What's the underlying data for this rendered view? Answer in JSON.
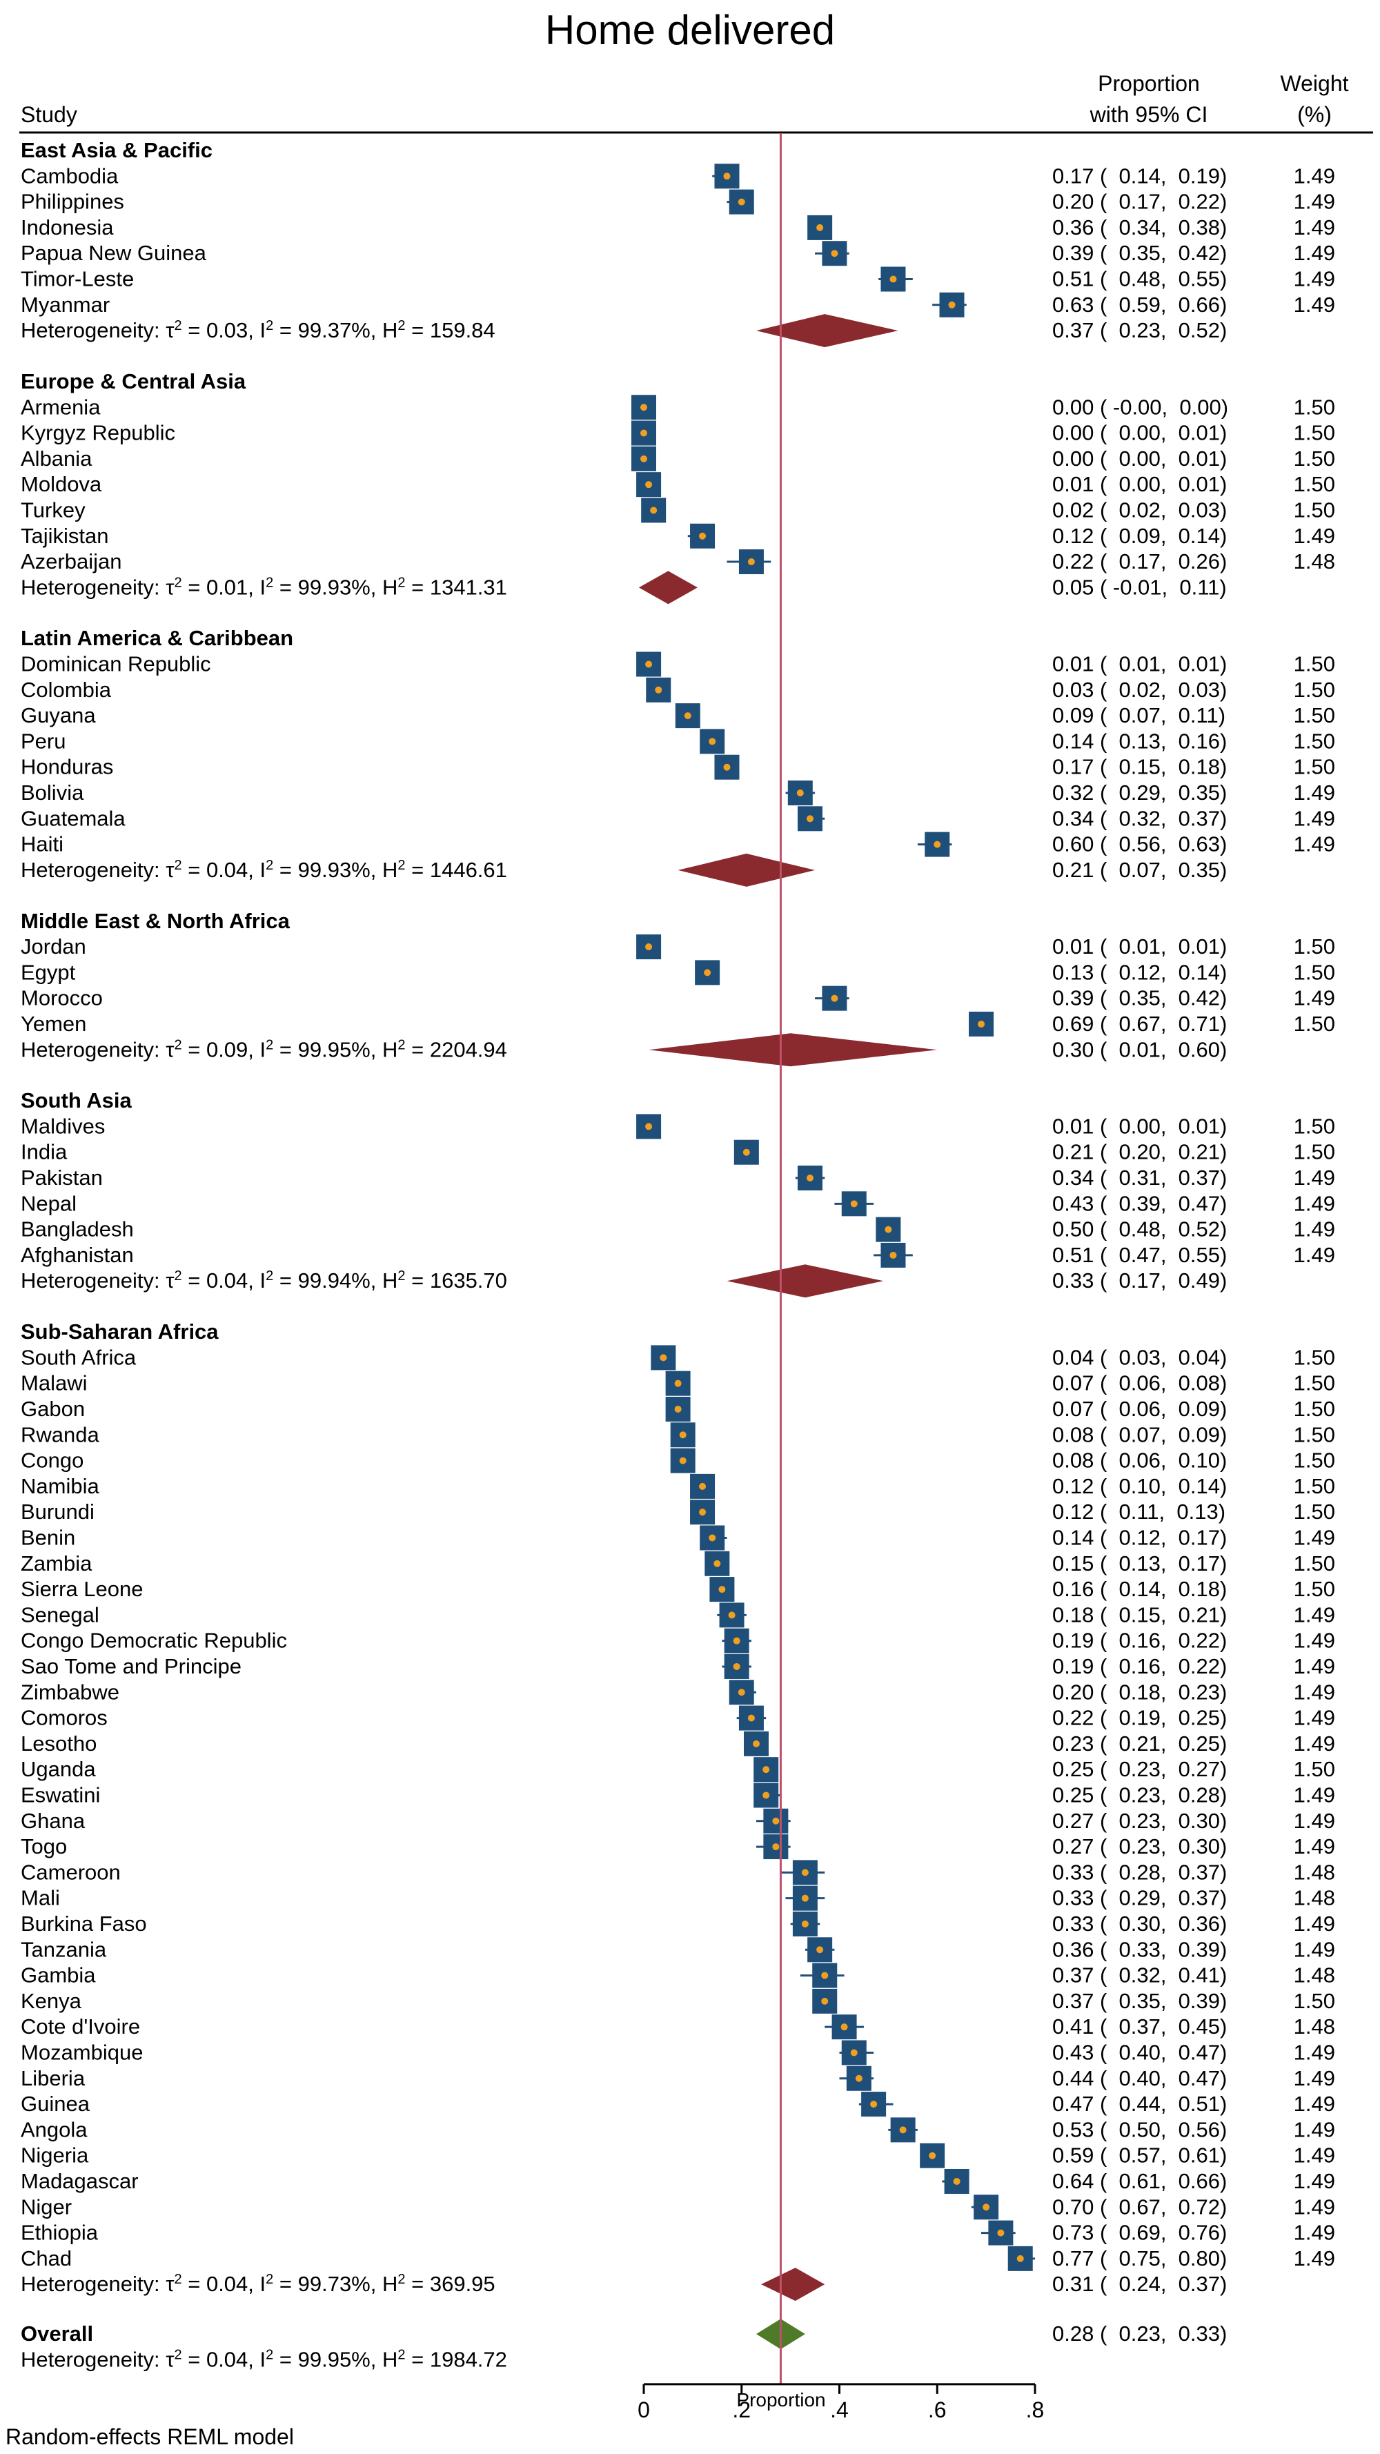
{
  "chart_data": {
    "type": "forest",
    "title": "Home delivered",
    "xlabel": "Proportion",
    "xlim": [
      0,
      0.8
    ],
    "xticks": [
      {
        "value": 0,
        "label": "0"
      },
      {
        "value": 0.2,
        "label": ".2"
      },
      {
        "value": 0.4,
        "label": ".4"
      },
      {
        "value": 0.6,
        "label": ".6"
      },
      {
        "value": 0.8,
        "label": ".8"
      }
    ],
    "overall_line": 0.28,
    "columns": {
      "study": "Study",
      "effect_line1": "Proportion",
      "effect_line2": "with 95% CI",
      "weight_line1": "Weight",
      "weight_line2": "(%)"
    },
    "footnote": "Random-effects REML model",
    "colors": {
      "marker_box": "#1f4e79",
      "marker_dot": "#f0a020",
      "subgroup_diamond": "#8b2a2e",
      "overall_diamond": "#4f7a28",
      "reference_line": "#c0506a"
    },
    "groups": [
      {
        "name": "East Asia & Pacific",
        "studies": [
          {
            "study": "Cambodia",
            "es": 0.17,
            "lo": 0.14,
            "hi": 0.19,
            "ci": "0.17 (  0.14,  0.19)",
            "weight": "1.49"
          },
          {
            "study": "Philippines",
            "es": 0.2,
            "lo": 0.17,
            "hi": 0.22,
            "ci": "0.20 (  0.17,  0.22)",
            "weight": "1.49"
          },
          {
            "study": "Indonesia",
            "es": 0.36,
            "lo": 0.34,
            "hi": 0.38,
            "ci": "0.36 (  0.34,  0.38)",
            "weight": "1.49"
          },
          {
            "study": "Papua New Guinea",
            "es": 0.39,
            "lo": 0.35,
            "hi": 0.42,
            "ci": "0.39 (  0.35,  0.42)",
            "weight": "1.49"
          },
          {
            "study": "Timor-Leste",
            "es": 0.51,
            "lo": 0.48,
            "hi": 0.55,
            "ci": "0.51 (  0.48,  0.55)",
            "weight": "1.49"
          },
          {
            "study": "Myanmar",
            "es": 0.63,
            "lo": 0.59,
            "hi": 0.66,
            "ci": "0.63 (  0.59,  0.66)",
            "weight": "1.49"
          }
        ],
        "het": {
          "tau2": "0.03",
          "i2": "99.37%",
          "h2": "159.84",
          "es": 0.37,
          "lo": 0.23,
          "hi": 0.52,
          "ci": "0.37 (  0.23,  0.52)"
        }
      },
      {
        "name": "Europe & Central Asia",
        "studies": [
          {
            "study": "Armenia",
            "es": 0.0,
            "lo": -0.0,
            "hi": 0.0,
            "ci": "0.00 ( -0.00,  0.00)",
            "weight": "1.50"
          },
          {
            "study": "Kyrgyz Republic",
            "es": 0.0,
            "lo": 0.0,
            "hi": 0.01,
            "ci": "0.00 (  0.00,  0.01)",
            "weight": "1.50"
          },
          {
            "study": "Albania",
            "es": 0.0,
            "lo": 0.0,
            "hi": 0.01,
            "ci": "0.00 (  0.00,  0.01)",
            "weight": "1.50"
          },
          {
            "study": "Moldova",
            "es": 0.01,
            "lo": 0.0,
            "hi": 0.01,
            "ci": "0.01 (  0.00,  0.01)",
            "weight": "1.50"
          },
          {
            "study": "Turkey",
            "es": 0.02,
            "lo": 0.02,
            "hi": 0.03,
            "ci": "0.02 (  0.02,  0.03)",
            "weight": "1.50"
          },
          {
            "study": "Tajikistan",
            "es": 0.12,
            "lo": 0.09,
            "hi": 0.14,
            "ci": "0.12 (  0.09,  0.14)",
            "weight": "1.49"
          },
          {
            "study": "Azerbaijan",
            "es": 0.22,
            "lo": 0.17,
            "hi": 0.26,
            "ci": "0.22 (  0.17,  0.26)",
            "weight": "1.48"
          }
        ],
        "het": {
          "tau2": "0.01",
          "i2": "99.93%",
          "h2": "1341.31",
          "es": 0.05,
          "lo": -0.01,
          "hi": 0.11,
          "ci": "0.05 ( -0.01,  0.11)"
        }
      },
      {
        "name": "Latin America & Caribbean",
        "studies": [
          {
            "study": "Dominican Republic",
            "es": 0.01,
            "lo": 0.01,
            "hi": 0.01,
            "ci": "0.01 (  0.01,  0.01)",
            "weight": "1.50"
          },
          {
            "study": "Colombia",
            "es": 0.03,
            "lo": 0.02,
            "hi": 0.03,
            "ci": "0.03 (  0.02,  0.03)",
            "weight": "1.50"
          },
          {
            "study": "Guyana",
            "es": 0.09,
            "lo": 0.07,
            "hi": 0.11,
            "ci": "0.09 (  0.07,  0.11)",
            "weight": "1.50"
          },
          {
            "study": "Peru",
            "es": 0.14,
            "lo": 0.13,
            "hi": 0.16,
            "ci": "0.14 (  0.13,  0.16)",
            "weight": "1.50"
          },
          {
            "study": "Honduras",
            "es": 0.17,
            "lo": 0.15,
            "hi": 0.18,
            "ci": "0.17 (  0.15,  0.18)",
            "weight": "1.50"
          },
          {
            "study": "Bolivia",
            "es": 0.32,
            "lo": 0.29,
            "hi": 0.35,
            "ci": "0.32 (  0.29,  0.35)",
            "weight": "1.49"
          },
          {
            "study": "Guatemala",
            "es": 0.34,
            "lo": 0.32,
            "hi": 0.37,
            "ci": "0.34 (  0.32,  0.37)",
            "weight": "1.49"
          },
          {
            "study": "Haiti",
            "es": 0.6,
            "lo": 0.56,
            "hi": 0.63,
            "ci": "0.60 (  0.56,  0.63)",
            "weight": "1.49"
          }
        ],
        "het": {
          "tau2": "0.04",
          "i2": "99.93%",
          "h2": "1446.61",
          "es": 0.21,
          "lo": 0.07,
          "hi": 0.35,
          "ci": "0.21 (  0.07,  0.35)"
        }
      },
      {
        "name": "Middle East & North Africa",
        "studies": [
          {
            "study": "Jordan",
            "es": 0.01,
            "lo": 0.01,
            "hi": 0.01,
            "ci": "0.01 (  0.01,  0.01)",
            "weight": "1.50"
          },
          {
            "study": "Egypt",
            "es": 0.13,
            "lo": 0.12,
            "hi": 0.14,
            "ci": "0.13 (  0.12,  0.14)",
            "weight": "1.50"
          },
          {
            "study": "Morocco",
            "es": 0.39,
            "lo": 0.35,
            "hi": 0.42,
            "ci": "0.39 (  0.35,  0.42)",
            "weight": "1.49"
          },
          {
            "study": "Yemen",
            "es": 0.69,
            "lo": 0.67,
            "hi": 0.71,
            "ci": "0.69 (  0.67,  0.71)",
            "weight": "1.50"
          }
        ],
        "het": {
          "tau2": "0.09",
          "i2": "99.95%",
          "h2": "2204.94",
          "es": 0.3,
          "lo": 0.01,
          "hi": 0.6,
          "ci": "0.30 (  0.01,  0.60)"
        }
      },
      {
        "name": "South Asia",
        "studies": [
          {
            "study": "Maldives",
            "es": 0.01,
            "lo": 0.0,
            "hi": 0.01,
            "ci": "0.01 (  0.00,  0.01)",
            "weight": "1.50"
          },
          {
            "study": "India",
            "es": 0.21,
            "lo": 0.2,
            "hi": 0.21,
            "ci": "0.21 (  0.20,  0.21)",
            "weight": "1.50"
          },
          {
            "study": "Pakistan",
            "es": 0.34,
            "lo": 0.31,
            "hi": 0.37,
            "ci": "0.34 (  0.31,  0.37)",
            "weight": "1.49"
          },
          {
            "study": "Nepal",
            "es": 0.43,
            "lo": 0.39,
            "hi": 0.47,
            "ci": "0.43 (  0.39,  0.47)",
            "weight": "1.49"
          },
          {
            "study": "Bangladesh",
            "es": 0.5,
            "lo": 0.48,
            "hi": 0.52,
            "ci": "0.50 (  0.48,  0.52)",
            "weight": "1.49"
          },
          {
            "study": "Afghanistan",
            "es": 0.51,
            "lo": 0.47,
            "hi": 0.55,
            "ci": "0.51 (  0.47,  0.55)",
            "weight": "1.49"
          }
        ],
        "het": {
          "tau2": "0.04",
          "i2": "99.94%",
          "h2": "1635.70",
          "es": 0.33,
          "lo": 0.17,
          "hi": 0.49,
          "ci": "0.33 (  0.17,  0.49)"
        }
      },
      {
        "name": "Sub-Saharan Africa",
        "studies": [
          {
            "study": "South Africa",
            "es": 0.04,
            "lo": 0.03,
            "hi": 0.04,
            "ci": "0.04 (  0.03,  0.04)",
            "weight": "1.50"
          },
          {
            "study": "Malawi",
            "es": 0.07,
            "lo": 0.06,
            "hi": 0.08,
            "ci": "0.07 (  0.06,  0.08)",
            "weight": "1.50"
          },
          {
            "study": "Gabon",
            "es": 0.07,
            "lo": 0.06,
            "hi": 0.09,
            "ci": "0.07 (  0.06,  0.09)",
            "weight": "1.50"
          },
          {
            "study": "Rwanda",
            "es": 0.08,
            "lo": 0.07,
            "hi": 0.09,
            "ci": "0.08 (  0.07,  0.09)",
            "weight": "1.50"
          },
          {
            "study": "Congo",
            "es": 0.08,
            "lo": 0.06,
            "hi": 0.1,
            "ci": "0.08 (  0.06,  0.10)",
            "weight": "1.50"
          },
          {
            "study": "Namibia",
            "es": 0.12,
            "lo": 0.1,
            "hi": 0.14,
            "ci": "0.12 (  0.10,  0.14)",
            "weight": "1.50"
          },
          {
            "study": "Burundi",
            "es": 0.12,
            "lo": 0.11,
            "hi": 0.13,
            "ci": "0.12 (  0.11,  0.13)",
            "weight": "1.50"
          },
          {
            "study": "Benin",
            "es": 0.14,
            "lo": 0.12,
            "hi": 0.17,
            "ci": "0.14 (  0.12,  0.17)",
            "weight": "1.49"
          },
          {
            "study": "Zambia",
            "es": 0.15,
            "lo": 0.13,
            "hi": 0.17,
            "ci": "0.15 (  0.13,  0.17)",
            "weight": "1.50"
          },
          {
            "study": "Sierra Leone",
            "es": 0.16,
            "lo": 0.14,
            "hi": 0.18,
            "ci": "0.16 (  0.14,  0.18)",
            "weight": "1.50"
          },
          {
            "study": "Senegal",
            "es": 0.18,
            "lo": 0.15,
            "hi": 0.21,
            "ci": "0.18 (  0.15,  0.21)",
            "weight": "1.49"
          },
          {
            "study": "Congo Democratic Republic",
            "es": 0.19,
            "lo": 0.16,
            "hi": 0.22,
            "ci": "0.19 (  0.16,  0.22)",
            "weight": "1.49"
          },
          {
            "study": "Sao Tome and Principe",
            "es": 0.19,
            "lo": 0.16,
            "hi": 0.22,
            "ci": "0.19 (  0.16,  0.22)",
            "weight": "1.49"
          },
          {
            "study": "Zimbabwe",
            "es": 0.2,
            "lo": 0.18,
            "hi": 0.23,
            "ci": "0.20 (  0.18,  0.23)",
            "weight": "1.49"
          },
          {
            "study": "Comoros",
            "es": 0.22,
            "lo": 0.19,
            "hi": 0.25,
            "ci": "0.22 (  0.19,  0.25)",
            "weight": "1.49"
          },
          {
            "study": "Lesotho",
            "es": 0.23,
            "lo": 0.21,
            "hi": 0.25,
            "ci": "0.23 (  0.21,  0.25)",
            "weight": "1.49"
          },
          {
            "study": "Uganda",
            "es": 0.25,
            "lo": 0.23,
            "hi": 0.27,
            "ci": "0.25 (  0.23,  0.27)",
            "weight": "1.50"
          },
          {
            "study": "Eswatini",
            "es": 0.25,
            "lo": 0.23,
            "hi": 0.28,
            "ci": "0.25 (  0.23,  0.28)",
            "weight": "1.49"
          },
          {
            "study": "Ghana",
            "es": 0.27,
            "lo": 0.23,
            "hi": 0.3,
            "ci": "0.27 (  0.23,  0.30)",
            "weight": "1.49"
          },
          {
            "study": "Togo",
            "es": 0.27,
            "lo": 0.23,
            "hi": 0.3,
            "ci": "0.27 (  0.23,  0.30)",
            "weight": "1.49"
          },
          {
            "study": "Cameroon",
            "es": 0.33,
            "lo": 0.28,
            "hi": 0.37,
            "ci": "0.33 (  0.28,  0.37)",
            "weight": "1.48"
          },
          {
            "study": "Mali",
            "es": 0.33,
            "lo": 0.29,
            "hi": 0.37,
            "ci": "0.33 (  0.29,  0.37)",
            "weight": "1.48"
          },
          {
            "study": "Burkina Faso",
            "es": 0.33,
            "lo": 0.3,
            "hi": 0.36,
            "ci": "0.33 (  0.30,  0.36)",
            "weight": "1.49"
          },
          {
            "study": "Tanzania",
            "es": 0.36,
            "lo": 0.33,
            "hi": 0.39,
            "ci": "0.36 (  0.33,  0.39)",
            "weight": "1.49"
          },
          {
            "study": "Gambia",
            "es": 0.37,
            "lo": 0.32,
            "hi": 0.41,
            "ci": "0.37 (  0.32,  0.41)",
            "weight": "1.48"
          },
          {
            "study": "Kenya",
            "es": 0.37,
            "lo": 0.35,
            "hi": 0.39,
            "ci": "0.37 (  0.35,  0.39)",
            "weight": "1.50"
          },
          {
            "study": "Cote d'Ivoire",
            "es": 0.41,
            "lo": 0.37,
            "hi": 0.45,
            "ci": "0.41 (  0.37,  0.45)",
            "weight": "1.48"
          },
          {
            "study": "Mozambique",
            "es": 0.43,
            "lo": 0.4,
            "hi": 0.47,
            "ci": "0.43 (  0.40,  0.47)",
            "weight": "1.49"
          },
          {
            "study": "Liberia",
            "es": 0.44,
            "lo": 0.4,
            "hi": 0.47,
            "ci": "0.44 (  0.40,  0.47)",
            "weight": "1.49"
          },
          {
            "study": "Guinea",
            "es": 0.47,
            "lo": 0.44,
            "hi": 0.51,
            "ci": "0.47 (  0.44,  0.51)",
            "weight": "1.49"
          },
          {
            "study": "Angola",
            "es": 0.53,
            "lo": 0.5,
            "hi": 0.56,
            "ci": "0.53 (  0.50,  0.56)",
            "weight": "1.49"
          },
          {
            "study": "Nigeria",
            "es": 0.59,
            "lo": 0.57,
            "hi": 0.61,
            "ci": "0.59 (  0.57,  0.61)",
            "weight": "1.49"
          },
          {
            "study": "Madagascar",
            "es": 0.64,
            "lo": 0.61,
            "hi": 0.66,
            "ci": "0.64 (  0.61,  0.66)",
            "weight": "1.49"
          },
          {
            "study": "Niger",
            "es": 0.7,
            "lo": 0.67,
            "hi": 0.72,
            "ci": "0.70 (  0.67,  0.72)",
            "weight": "1.49"
          },
          {
            "study": "Ethiopia",
            "es": 0.73,
            "lo": 0.69,
            "hi": 0.76,
            "ci": "0.73 (  0.69,  0.76)",
            "weight": "1.49"
          },
          {
            "study": "Chad",
            "es": 0.77,
            "lo": 0.75,
            "hi": 0.8,
            "ci": "0.77 (  0.75,  0.80)",
            "weight": "1.49"
          }
        ],
        "het": {
          "tau2": "0.04",
          "i2": "99.73%",
          "h2": "369.95",
          "es": 0.31,
          "lo": 0.24,
          "hi": 0.37,
          "ci": "0.31 (  0.24,  0.37)"
        }
      }
    ],
    "overall": {
      "name": "Overall",
      "tau2": "0.04",
      "i2": "99.95%",
      "h2": "1984.72",
      "es": 0.28,
      "lo": 0.23,
      "hi": 0.33,
      "ci": "0.28 (  0.23,  0.33)"
    }
  }
}
